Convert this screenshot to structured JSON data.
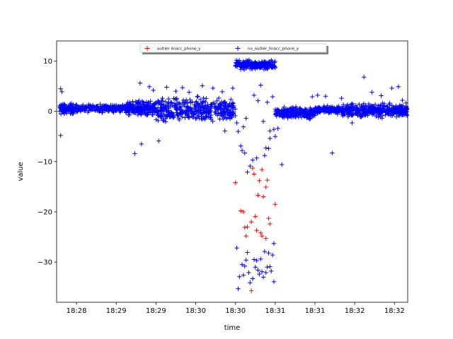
{
  "chart_data": {
    "type": "scatter",
    "title": "",
    "xlabel": "time",
    "ylabel": "value",
    "x_tick_labels": [
      "18:28",
      "18:29",
      "18:29",
      "18:30",
      "18:30",
      "18:31",
      "18:31",
      "18:32",
      "18:32"
    ],
    "y_ticks": [
      10,
      0,
      -10,
      -20,
      -30
    ],
    "y_tick_labels": [
      "10",
      "0",
      "−10",
      "−20",
      "−30"
    ],
    "xlim_seconds_from_first_tick": [
      -15,
      250
    ],
    "ylim": [
      -38,
      14
    ],
    "legend_position": "upper center",
    "marker": "+",
    "series": [
      {
        "name": "outlier linacc_phone_y",
        "color": "#ff0000",
        "points": [
          [
            120,
            -14.2
          ],
          [
            124,
            -19.8
          ],
          [
            126,
            -20.0
          ],
          [
            127,
            -23.1
          ],
          [
            128,
            -24.8
          ],
          [
            129,
            -23.0
          ],
          [
            132,
            -22.0
          ],
          [
            132,
            -35.7
          ],
          [
            133,
            -11.3
          ],
          [
            134,
            -12.5
          ],
          [
            135,
            -20.9
          ],
          [
            136,
            -23.7
          ],
          [
            137,
            -16.7
          ],
          [
            138,
            -13.8
          ],
          [
            139,
            -24.2
          ],
          [
            140,
            -24.8
          ],
          [
            140,
            -11.6
          ],
          [
            141,
            -17.0
          ],
          [
            143,
            -25.3
          ],
          [
            143,
            -15.1
          ],
          [
            144,
            -13.7
          ],
          [
            145,
            -21.3
          ],
          [
            146,
            -22.4
          ],
          [
            150,
            -18.5
          ]
        ]
      },
      {
        "name": "no_outlier_linacc_phone_y",
        "color": "#0000ff",
        "segments": [
          {
            "t0": -13,
            "t1": 0,
            "center": 0.5,
            "spread": 1.4,
            "n": 120
          },
          {
            "t0": 0,
            "t1": 36,
            "center": 0.6,
            "spread": 1.0,
            "n": 240
          },
          {
            "t0": 36,
            "t1": 60,
            "center": 0.6,
            "spread": 1.8,
            "n": 240
          },
          {
            "t0": 60,
            "t1": 120,
            "center": 0.2,
            "spread": 3.2,
            "n": 420
          },
          {
            "t0": 150,
            "t1": 180,
            "center": -0.3,
            "spread": 1.6,
            "n": 260
          },
          {
            "t0": 180,
            "t1": 200,
            "center": 0.3,
            "spread": 1.0,
            "n": 160
          },
          {
            "t0": 200,
            "t1": 250,
            "center": 0.2,
            "spread": 1.8,
            "n": 360
          }
        ],
        "dense_bands": [
          {
            "t0": 120,
            "t1": 150,
            "center": 9.2,
            "spread": 1.2,
            "n": 220
          }
        ],
        "extra_points": [
          [
            -12,
            4.5
          ],
          [
            -12,
            -4.8
          ],
          [
            -11,
            3.9
          ],
          [
            12,
            0.4
          ],
          [
            44,
            -8.4
          ],
          [
            49,
            -6.5
          ],
          [
            48,
            5.6
          ],
          [
            55,
            4.9
          ],
          [
            58,
            4.2
          ],
          [
            62,
            -5.9
          ],
          [
            68,
            4.8
          ],
          [
            75,
            4.0
          ],
          [
            80,
            4.7
          ],
          [
            85,
            3.8
          ],
          [
            95,
            5.1
          ],
          [
            103,
            4.6
          ],
          [
            110,
            3.9
          ],
          [
            112,
            -3.9
          ],
          [
            118,
            4.6
          ],
          [
            121,
            -2.3
          ],
          [
            122,
            -4.0
          ],
          [
            124,
            -6.9
          ],
          [
            125,
            -7.8
          ],
          [
            126,
            -3.1
          ],
          [
            127,
            -8.3
          ],
          [
            128,
            -1.4
          ],
          [
            129,
            -12.1
          ],
          [
            131,
            -10.9
          ],
          [
            133,
            -9.7
          ],
          [
            134,
            3.2
          ],
          [
            136,
            -9.3
          ],
          [
            137,
            2.1
          ],
          [
            139,
            5.2
          ],
          [
            141,
            -2.0
          ],
          [
            142,
            -8.8
          ],
          [
            143,
            -7.3
          ],
          [
            144,
            1.8
          ],
          [
            145,
            -7.4
          ],
          [
            146,
            -5.4
          ],
          [
            146,
            -3.9
          ],
          [
            148,
            2.9
          ],
          [
            149,
            -3.6
          ],
          [
            150,
            -5.0
          ],
          [
            152,
            -3.4
          ],
          [
            155,
            -10.6
          ],
          [
            121,
            -27.2
          ],
          [
            122,
            -35.3
          ],
          [
            123,
            -32.9
          ],
          [
            125,
            -30.5
          ],
          [
            126,
            -32.6
          ],
          [
            127,
            -30.8
          ],
          [
            128,
            -29.6
          ],
          [
            129,
            -28.1
          ],
          [
            130,
            -32.1
          ],
          [
            131,
            -34.1
          ],
          [
            133,
            -33.3
          ],
          [
            134,
            -29.5
          ],
          [
            135,
            -31.0
          ],
          [
            136,
            -29.7
          ],
          [
            137,
            -31.6
          ],
          [
            138,
            -32.4
          ],
          [
            139,
            -29.4
          ],
          [
            140,
            -31.9
          ],
          [
            141,
            -33.0
          ],
          [
            142,
            -27.9
          ],
          [
            143,
            -32.1
          ],
          [
            144,
            -31.0
          ],
          [
            145,
            -28.2
          ],
          [
            146,
            -30.9
          ],
          [
            147,
            -31.8
          ],
          [
            148,
            -28.6
          ],
          [
            149,
            -33.9
          ],
          [
            149,
            -26.3
          ],
          [
            178,
            2.9
          ],
          [
            182,
            3.2
          ],
          [
            188,
            3.0
          ],
          [
            193,
            -8.3
          ],
          [
            200,
            2.6
          ],
          [
            208,
            -2.3
          ],
          [
            217,
            6.8
          ],
          [
            223,
            3.8
          ],
          [
            230,
            3.1
          ],
          [
            238,
            4.6
          ],
          [
            243,
            4.9
          ],
          [
            246,
            2.2
          ]
        ]
      }
    ]
  }
}
